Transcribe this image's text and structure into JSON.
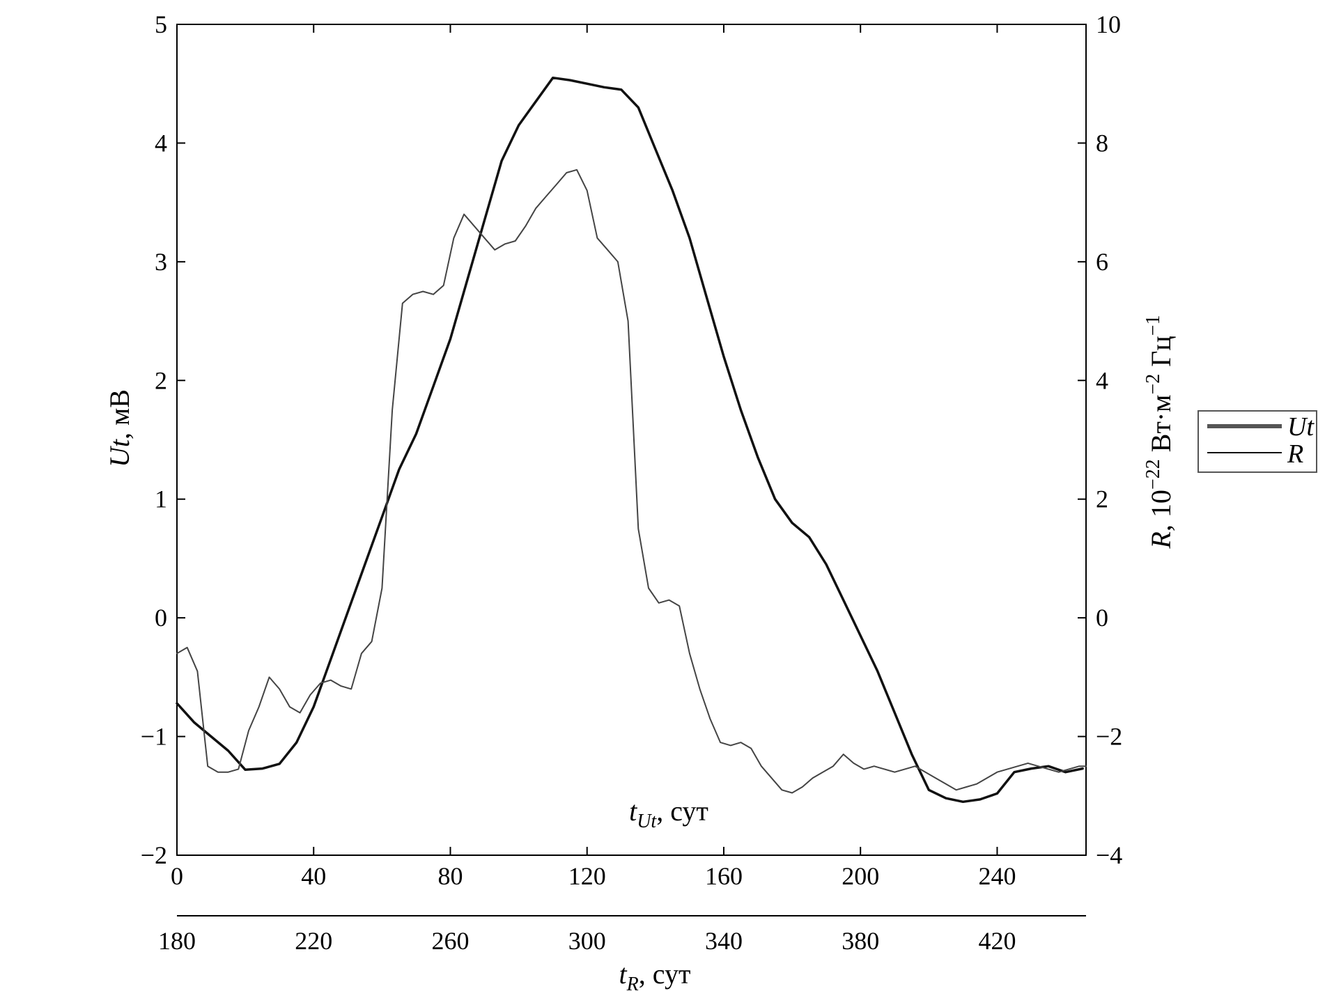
{
  "chart_data": {
    "type": "line",
    "y_left": {
      "label_var": "Ut",
      "label_unit": ", мВ",
      "range": [
        -2,
        5
      ],
      "ticks": [
        -2,
        -1,
        0,
        1,
        2,
        3,
        4,
        5
      ],
      "tick_labels": [
        "−2",
        "−1",
        "0",
        "1",
        "2",
        "3",
        "4",
        "5"
      ]
    },
    "y_right": {
      "label_var": "R",
      "label_prefix": ", 10",
      "label_exp1": "−22",
      "label_mid": " Вт·м",
      "label_exp2": "−2",
      "label_hz": " Гц",
      "label_exp3": "−1",
      "range": [
        -4,
        10
      ],
      "ticks": [
        -4,
        -2,
        0,
        2,
        4,
        6,
        8,
        10
      ],
      "tick_labels": [
        "−4",
        "−2",
        "0",
        "2",
        "4",
        "6",
        "8",
        "10"
      ]
    },
    "x_top": {
      "label_var": "t",
      "label_sub": "Ut",
      "label_unit": ", сут",
      "range": [
        0,
        266
      ],
      "ticks": [
        0,
        40,
        80,
        120,
        160,
        200,
        240
      ],
      "tick_labels": [
        "0",
        "40",
        "80",
        "120",
        "160",
        "200",
        "240"
      ]
    },
    "x_bottom": {
      "label_var": "t",
      "label_sub": "R",
      "label_unit": ", сут",
      "range": [
        180,
        446
      ],
      "ticks": [
        180,
        220,
        260,
        300,
        340,
        380,
        420
      ],
      "tick_labels": [
        "180",
        "220",
        "260",
        "300",
        "340",
        "380",
        "420"
      ]
    },
    "series": [
      {
        "name": "Ut",
        "axis": "left",
        "x_axis": "top",
        "color": "#111111",
        "x": [
          0,
          5,
          10,
          15,
          20,
          25,
          30,
          35,
          40,
          45,
          50,
          55,
          60,
          65,
          70,
          75,
          80,
          85,
          90,
          95,
          100,
          105,
          110,
          115,
          120,
          125,
          130,
          135,
          140,
          145,
          150,
          155,
          160,
          165,
          170,
          175,
          180,
          185,
          190,
          195,
          200,
          205,
          210,
          215,
          220,
          225,
          230,
          235,
          240,
          245,
          250,
          255,
          260,
          265
        ],
        "y": [
          -0.72,
          -0.88,
          -1.0,
          -1.12,
          -1.28,
          -1.27,
          -1.23,
          -1.05,
          -0.75,
          -0.35,
          0.05,
          0.45,
          0.85,
          1.25,
          1.55,
          1.95,
          2.35,
          2.85,
          3.35,
          3.85,
          4.15,
          4.35,
          4.55,
          4.53,
          4.5,
          4.47,
          4.45,
          4.3,
          3.95,
          3.6,
          3.2,
          2.7,
          2.2,
          1.75,
          1.35,
          1.0,
          0.8,
          0.68,
          0.45,
          0.15,
          -0.15,
          -0.45,
          -0.8,
          -1.15,
          -1.45,
          -1.52,
          -1.55,
          -1.53,
          -1.48,
          -1.3,
          -1.27,
          -1.25,
          -1.3,
          -1.27
        ]
      },
      {
        "name": "R",
        "axis": "right",
        "x_axis": "bottom",
        "color": "#444444",
        "x": [
          180,
          183,
          186,
          189,
          192,
          195,
          198,
          201,
          204,
          207,
          210,
          213,
          216,
          219,
          222,
          225,
          228,
          231,
          234,
          237,
          240,
          243,
          246,
          249,
          252,
          255,
          258,
          261,
          264,
          267,
          270,
          273,
          276,
          279,
          282,
          285,
          288,
          291,
          294,
          297,
          300,
          303,
          306,
          309,
          312,
          315,
          318,
          321,
          324,
          327,
          330,
          333,
          336,
          339,
          342,
          345,
          348,
          351,
          354,
          357,
          360,
          363,
          366,
          369,
          372,
          375,
          378,
          381,
          384,
          387,
          390,
          393,
          396,
          399,
          402,
          405,
          408,
          411,
          414,
          417,
          420,
          423,
          426,
          429,
          432,
          435,
          438,
          441,
          444,
          446
        ],
        "y": [
          -0.6,
          -0.5,
          -0.9,
          -2.5,
          -2.6,
          -2.6,
          -2.55,
          -1.9,
          -1.5,
          -1.0,
          -1.2,
          -1.5,
          -1.6,
          -1.3,
          -1.1,
          -1.05,
          -1.15,
          -1.2,
          -0.6,
          -0.4,
          0.5,
          3.5,
          5.3,
          5.45,
          5.5,
          5.45,
          5.6,
          6.4,
          6.8,
          6.6,
          6.4,
          6.2,
          6.3,
          6.35,
          6.6,
          6.9,
          7.1,
          7.3,
          7.5,
          7.55,
          7.2,
          6.4,
          6.2,
          6.0,
          5.0,
          1.5,
          0.5,
          0.25,
          0.3,
          0.2,
          -0.6,
          -1.2,
          -1.7,
          -2.1,
          -2.15,
          -2.1,
          -2.2,
          -2.5,
          -2.7,
          -2.9,
          -2.95,
          -2.85,
          -2.7,
          -2.6,
          -2.5,
          -2.3,
          -2.45,
          -2.55,
          -2.5,
          -2.55,
          -2.6,
          -2.55,
          -2.5,
          -2.6,
          -2.7,
          -2.8,
          -2.9,
          -2.85,
          -2.8,
          -2.7,
          -2.6,
          -2.55,
          -2.5,
          -2.45,
          -2.5,
          -2.55,
          -2.6,
          -2.55,
          -2.5,
          -2.5
        ]
      }
    ],
    "legend": {
      "position": "right",
      "entries": [
        "Ut",
        "R"
      ]
    },
    "grid": false
  }
}
